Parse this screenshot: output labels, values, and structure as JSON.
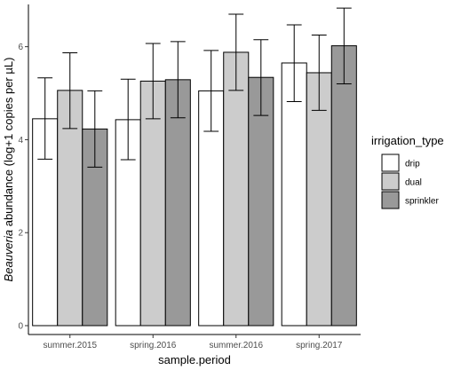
{
  "chart_data": {
    "type": "bar",
    "xlabel": "sample.period",
    "ylabel_italic": "Beauveria",
    "ylabel_rest": " abundance (log+1 copies per µL)",
    "categories": [
      "summer.2015",
      "spring.2016",
      "summer.2016",
      "spring.2017"
    ],
    "ylim": [
      0,
      7.1
    ],
    "yticks": [
      0,
      2,
      4,
      6
    ],
    "grid": false,
    "legend": {
      "title": "irrigation_type",
      "placement": "right"
    },
    "series": [
      {
        "name": "drip",
        "color": "#ffffff",
        "values": [
          4.45,
          4.43,
          5.05,
          5.65
        ],
        "err_low": [
          3.58,
          3.57,
          4.18,
          4.82
        ],
        "err_high": [
          5.33,
          5.3,
          5.92,
          6.47
        ]
      },
      {
        "name": "dual",
        "color": "#cccccc",
        "values": [
          5.06,
          5.26,
          5.88,
          5.44
        ],
        "err_low": [
          4.24,
          4.45,
          5.06,
          4.63
        ],
        "err_high": [
          5.87,
          6.07,
          6.7,
          6.25
        ]
      },
      {
        "name": "sprinkler",
        "color": "#999999",
        "values": [
          4.23,
          5.29,
          5.34,
          6.02
        ],
        "err_low": [
          3.41,
          4.47,
          4.52,
          5.2
        ],
        "err_high": [
          5.05,
          6.11,
          6.15,
          6.83
        ]
      }
    ]
  }
}
